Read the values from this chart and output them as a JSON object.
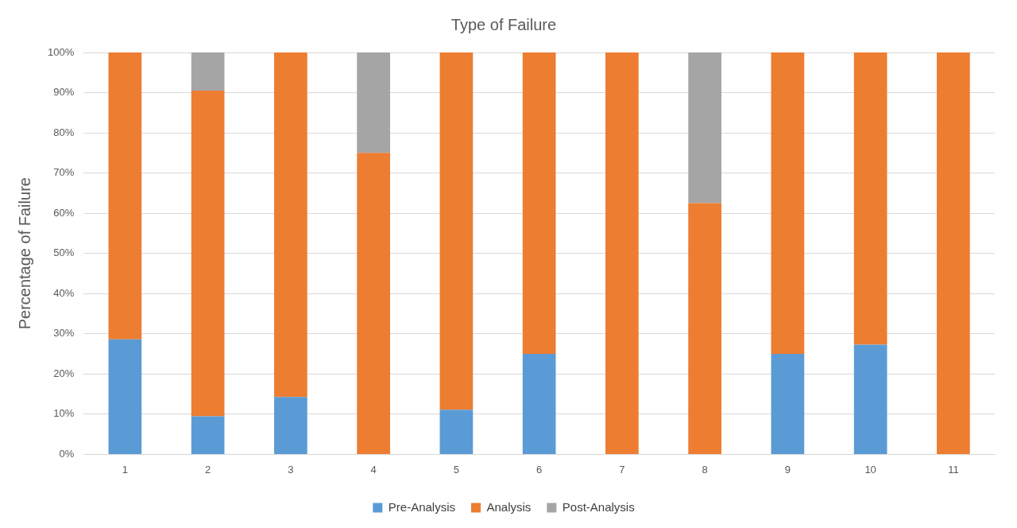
{
  "chart_data": {
    "type": "bar",
    "title": "Type of Failure",
    "ylabel": "Percentage of Failure",
    "categories": [
      "1",
      "2",
      "3",
      "4",
      "5",
      "6",
      "7",
      "8",
      "9",
      "10",
      "11"
    ],
    "series": [
      {
        "name": "Pre-Analysis",
        "color": "#5b9bd5",
        "values": [
          28.6,
          9.5,
          14.3,
          0,
          11.1,
          25,
          0,
          0,
          25,
          27.3,
          0
        ]
      },
      {
        "name": "Analysis",
        "color": "#ed7d31",
        "values": [
          71.4,
          81.0,
          85.7,
          75,
          88.9,
          75,
          100,
          62.5,
          75,
          72.7,
          100
        ]
      },
      {
        "name": "Post-Analysis",
        "color": "#a5a5a5",
        "values": [
          0,
          9.5,
          0,
          25,
          0,
          0,
          0,
          37.5,
          0,
          0,
          0
        ]
      }
    ],
    "stacked": true,
    "ylim": [
      0,
      100
    ],
    "yticks": [
      {
        "value": 0,
        "label": "0%"
      },
      {
        "value": 10,
        "label": "10%"
      },
      {
        "value": 20,
        "label": "20%"
      },
      {
        "value": 30,
        "label": "30%"
      },
      {
        "value": 40,
        "label": "40%"
      },
      {
        "value": 50,
        "label": "50%"
      },
      {
        "value": 60,
        "label": "60%"
      },
      {
        "value": 70,
        "label": "70%"
      },
      {
        "value": 80,
        "label": "80%"
      },
      {
        "value": 90,
        "label": "90%"
      },
      {
        "value": 100,
        "label": "100%"
      }
    ],
    "grid": "y",
    "legend": "bottom"
  }
}
